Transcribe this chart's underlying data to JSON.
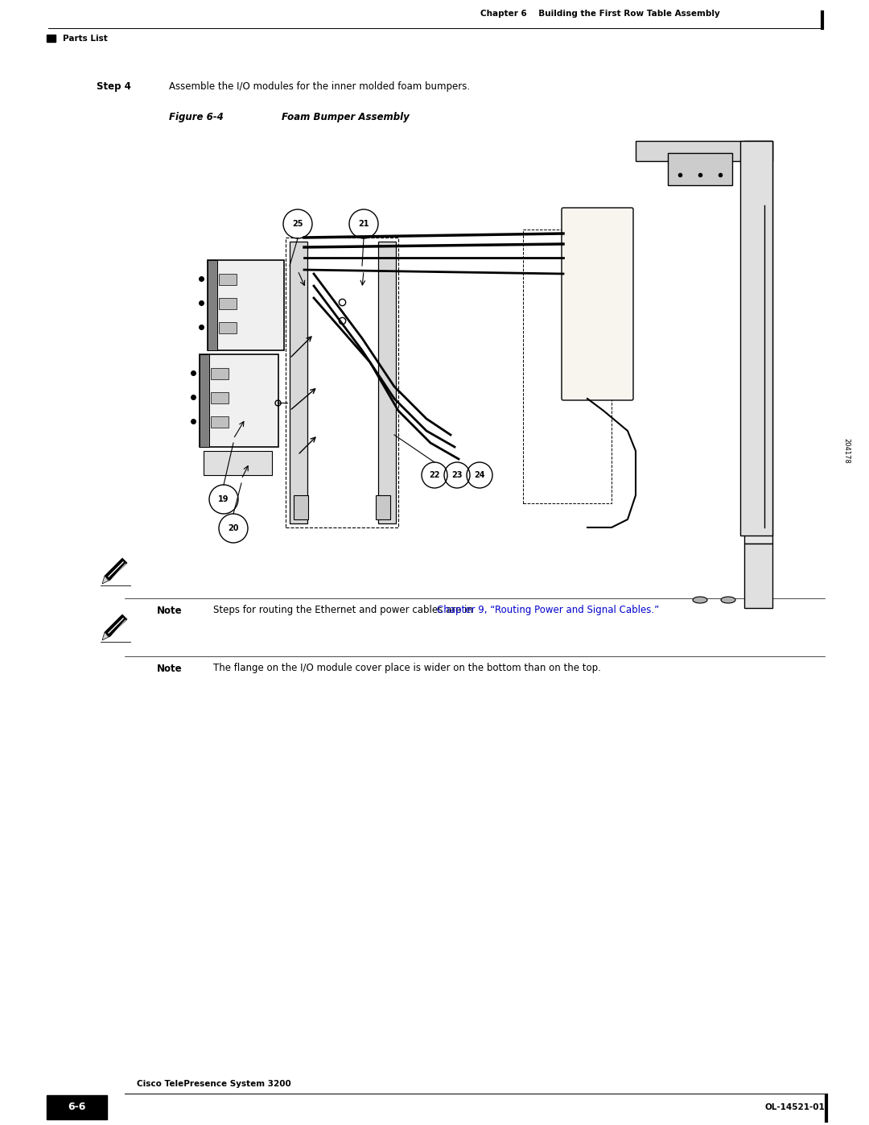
{
  "page_width": 10.8,
  "page_height": 13.97,
  "background_color": "#ffffff",
  "header_text": "Chapter 6    Building the First Row Table Assembly",
  "parts_list_label": "Parts List",
  "step_label": "Step 4",
  "step_text": "Assemble the I/O modules for the inner molded foam bumpers.",
  "figure_label": "Figure 6-4",
  "figure_title": "Foam Bumper Assembly",
  "figure_id": "204178",
  "note1_text": "Steps for routing the Ethernet and power cables are in ",
  "note1_link": "Chapter 9, “Routing Power and Signal Cables.”",
  "note2_text": "The flange on the I/O module cover place is wider on the bottom than on the top.",
  "footer_left_box": "6-6",
  "footer_left_text": "Cisco TelePresence System 3200",
  "footer_right_text": "OL-14521-01",
  "link_color": "#0000cd",
  "footer_box_color": "#000000",
  "footer_text_color": "#ffffff"
}
